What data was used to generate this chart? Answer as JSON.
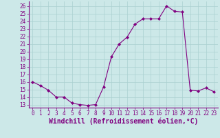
{
  "x": [
    0,
    1,
    2,
    3,
    4,
    5,
    6,
    7,
    8,
    9,
    10,
    11,
    12,
    13,
    14,
    15,
    16,
    17,
    18,
    19,
    20,
    21,
    22,
    23
  ],
  "y": [
    16,
    15.5,
    14.9,
    14.0,
    14.0,
    13.2,
    13.0,
    12.9,
    13.0,
    15.3,
    19.3,
    21.0,
    21.9,
    23.6,
    24.3,
    24.3,
    24.3,
    26.0,
    25.3,
    25.2,
    14.9,
    14.8,
    15.2,
    14.7
  ],
  "line_color": "#800080",
  "marker": "D",
  "marker_size": 2.0,
  "bg_color": "#cce8e8",
  "grid_color": "#aad0d0",
  "xlabel": "Windchill (Refroidissement éolien,°C)",
  "xlabel_color": "#800080",
  "xlabel_fontsize": 7,
  "ylabel_ticks": [
    13,
    14,
    15,
    16,
    17,
    18,
    19,
    20,
    21,
    22,
    23,
    24,
    25,
    26
  ],
  "ylim": [
    12.6,
    26.6
  ],
  "xlim": [
    -0.5,
    23.5
  ],
  "tick_fontsize": 5.5,
  "tick_color": "#800080",
  "spine_color": "#800080",
  "line_width": 0.8
}
